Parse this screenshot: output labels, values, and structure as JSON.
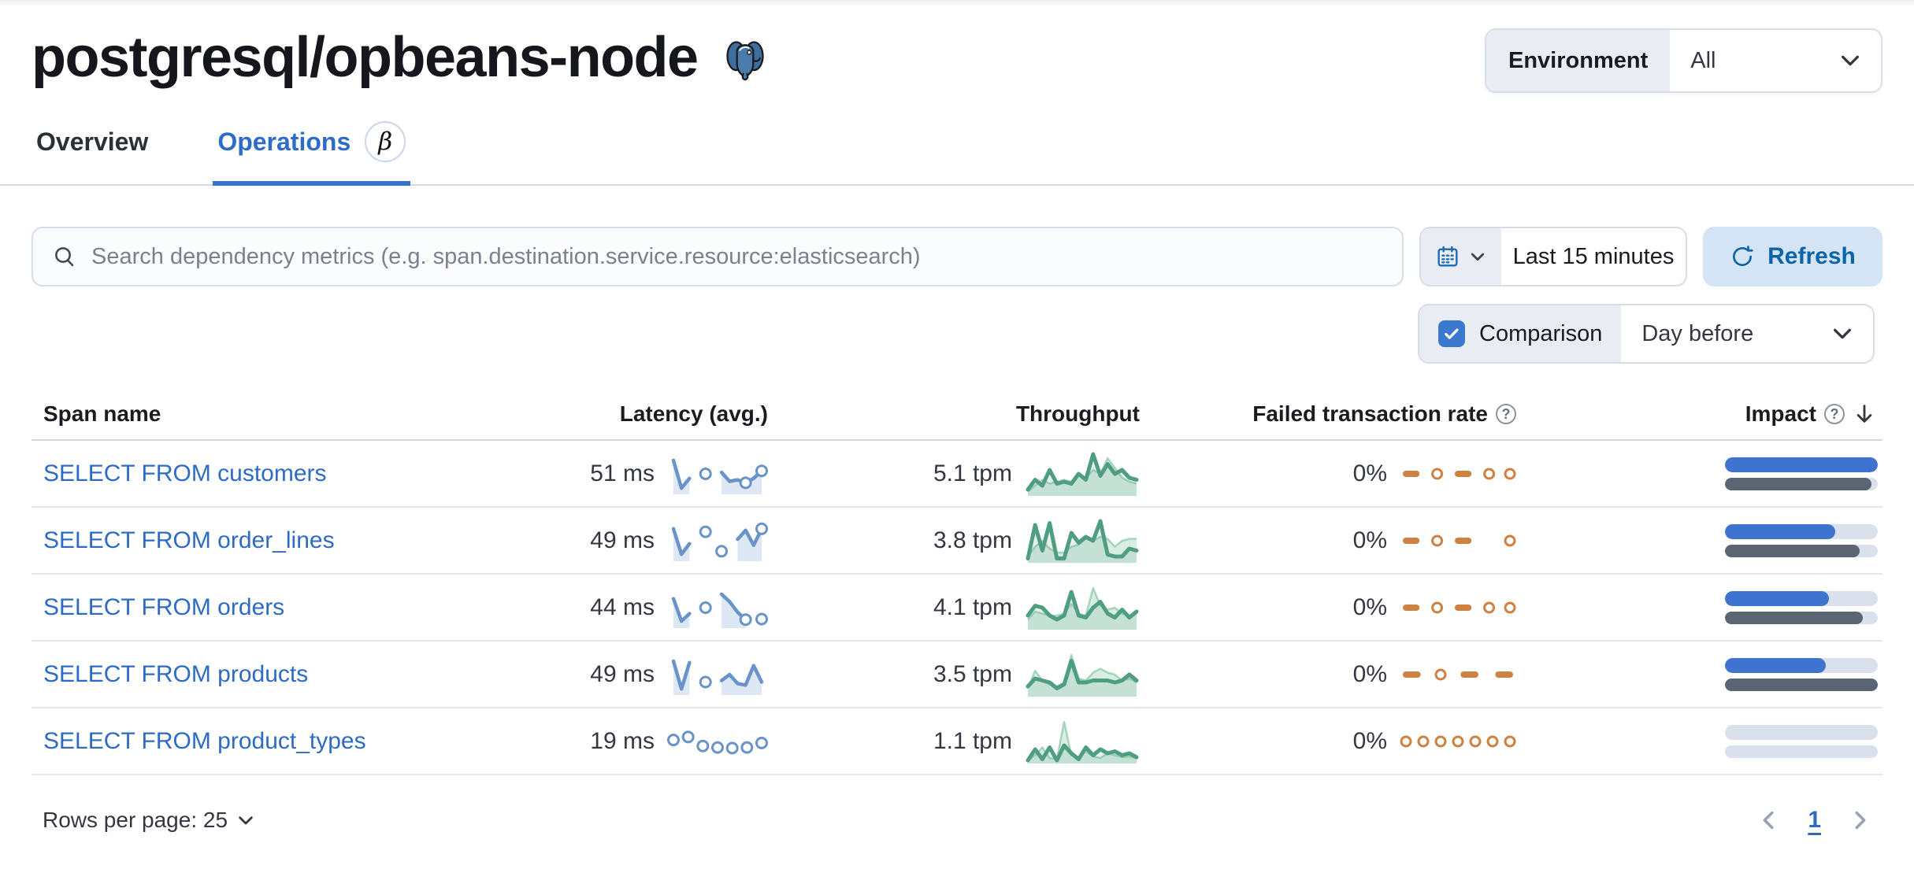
{
  "page": {
    "title": "postgresql/opbeans-node"
  },
  "env": {
    "label": "Environment",
    "value": "All"
  },
  "tabs": [
    {
      "label": "Overview"
    },
    {
      "label": "Operations",
      "beta": "β"
    }
  ],
  "search": {
    "placeholder": "Search dependency metrics (e.g. span.destination.service.resource:elasticsearch)"
  },
  "timepicker": {
    "value": "Last 15 minutes"
  },
  "refresh": {
    "label": "Refresh"
  },
  "comparison": {
    "label": "Comparison",
    "value": "Day before"
  },
  "table": {
    "columns": [
      "Span name",
      "Latency (avg.)",
      "Throughput",
      "Failed transaction rate",
      "Impact"
    ],
    "help_glyph": "?",
    "rows": [
      {
        "name": "SELECT FROM customers",
        "latency": "51 ms",
        "throughput": "5.1 tpm",
        "failed_rate": "0%",
        "impact": {
          "current": 100,
          "previous": 96
        },
        "latency_spark": {
          "points": [
            0.95,
            0.02,
            0.35,
            null,
            0.5,
            null,
            0.55,
            0.25,
            0.3,
            0.2,
            0.35,
            0.6
          ],
          "dots": [
            9,
            11
          ]
        },
        "throughput_spark": {
          "points": [
            0.1,
            0.35,
            0.2,
            0.6,
            0.25,
            0.3,
            0.25,
            0.5,
            0.35,
            1.0,
            0.45,
            0.75,
            0.5,
            0.6,
            0.4,
            0.35
          ],
          "compare": [
            0.05,
            0.2,
            0.35,
            0.25,
            0.3,
            0.35,
            0.3,
            0.45,
            0.4,
            0.6,
            0.5,
            0.9,
            0.65,
            0.4,
            0.3,
            0.25
          ]
        },
        "failed_spark": {
          "points": [
            0.5,
            0.5,
            null,
            0.5,
            null,
            0.5,
            0.5,
            null,
            0.5,
            null,
            0.5
          ]
        }
      },
      {
        "name": "SELECT FROM order_lines",
        "latency": "49 ms",
        "throughput": "3.8 tpm",
        "failed_rate": "0%",
        "impact": {
          "current": 72,
          "previous": 88
        },
        "latency_spark": {
          "points": [
            0.9,
            0.05,
            0.4,
            null,
            0.8,
            null,
            0.15,
            null,
            0.55,
            0.85,
            0.35,
            0.9
          ],
          "dots": [
            11
          ]
        },
        "throughput_spark": {
          "points": [
            0.05,
            0.9,
            0.25,
            0.95,
            0.05,
            0.05,
            0.7,
            0.45,
            0.6,
            0.5,
            1.0,
            0.15,
            0.1,
            0.1,
            0.3,
            0.25
          ],
          "compare": [
            0.1,
            0.35,
            0.5,
            0.3,
            0.2,
            0.2,
            0.35,
            0.4,
            0.55,
            0.5,
            0.6,
            0.55,
            0.35,
            0.5,
            0.55,
            0.55
          ]
        },
        "failed_spark": {
          "points": [
            0.5,
            0.5,
            null,
            0.5,
            null,
            0.5,
            0.5,
            null,
            null,
            null,
            0.5
          ]
        }
      },
      {
        "name": "SELECT FROM orders",
        "latency": "44 ms",
        "throughput": "4.1 tpm",
        "failed_rate": "0%",
        "impact": {
          "current": 68,
          "previous": 90
        },
        "latency_spark": {
          "points": [
            0.8,
            0.05,
            0.3,
            null,
            0.5,
            null,
            0.95,
            0.7,
            0.35,
            0.1,
            null,
            0.12
          ],
          "dots": [
            9
          ]
        },
        "throughput_spark": {
          "points": [
            0.3,
            0.55,
            0.5,
            0.3,
            0.2,
            0.3,
            0.9,
            0.3,
            0.25,
            0.5,
            0.65,
            0.35,
            0.25,
            0.45,
            0.25,
            0.4
          ],
          "compare": [
            0.2,
            0.4,
            0.35,
            0.3,
            0.3,
            0.35,
            0.6,
            0.35,
            0.3,
            1.0,
            0.55,
            0.45,
            0.5,
            0.35,
            0.3,
            0.35
          ]
        },
        "failed_spark": {
          "points": [
            0.5,
            0.5,
            null,
            0.5,
            null,
            0.5,
            0.5,
            null,
            0.5,
            null,
            0.5
          ]
        }
      },
      {
        "name": "SELECT FROM products",
        "latency": "49 ms",
        "throughput": "3.5 tpm",
        "failed_rate": "0%",
        "impact": {
          "current": 66,
          "previous": 100
        },
        "latency_spark": {
          "points": [
            0.95,
            0.02,
            0.9,
            null,
            0.25,
            null,
            0.3,
            0.5,
            0.2,
            0.15,
            0.8,
            0.25
          ],
          "dots": []
        },
        "throughput_spark": {
          "points": [
            0.2,
            0.4,
            0.35,
            0.3,
            0.15,
            0.25,
            0.85,
            0.3,
            0.3,
            0.35,
            0.35,
            0.35,
            0.3,
            0.35,
            0.5,
            0.35
          ],
          "compare": [
            0.15,
            0.6,
            0.35,
            0.25,
            0.2,
            0.3,
            1.0,
            0.4,
            0.35,
            0.55,
            0.65,
            0.55,
            0.5,
            0.35,
            0.4,
            0.3
          ]
        },
        "failed_spark": {
          "points": [
            0.5,
            0.5,
            null,
            0.5,
            null,
            0.5,
            0.5,
            null,
            0.5,
            0.5
          ]
        }
      },
      {
        "name": "SELECT FROM product_types",
        "latency": "19 ms",
        "throughput": "1.1 tpm",
        "failed_rate": "0%",
        "impact": {
          "current": 0,
          "previous": 0
        },
        "latency_spark": {
          "points": [
            0.55,
            null,
            0.65,
            null,
            0.35,
            null,
            0.3,
            null,
            0.28,
            null,
            0.3,
            null,
            0.45
          ],
          "dots": []
        },
        "throughput_spark": {
          "points": [
            0.02,
            0.3,
            0.05,
            0.35,
            0.02,
            0.4,
            0.2,
            0.05,
            0.35,
            0.15,
            0.3,
            0.2,
            0.25,
            0.15,
            0.2,
            0.1
          ],
          "compare": [
            0.02,
            0.15,
            0.35,
            0.08,
            0.05,
            1.0,
            0.15,
            0.08,
            0.25,
            0.12,
            0.08,
            0.2,
            0.15,
            0.1,
            0.12,
            0.08
          ]
        },
        "failed_spark": {
          "points": [
            0.5,
            null,
            0.5,
            null,
            0.5,
            null,
            0.5,
            null,
            0.5,
            null,
            0.5,
            null,
            0.5
          ]
        }
      }
    ]
  },
  "pagination": {
    "rows_per_page_label": "Rows per page: 25",
    "page": "1"
  },
  "colors": {
    "link": "#2d6bc4",
    "impact": {
      "current": "#3e74cf",
      "previous": "#5a6472",
      "track": "#dbe1ec"
    },
    "sparks": {
      "latency": {
        "stroke": "#6a94c8",
        "fill": "#dde8f4",
        "lw": 4.5,
        "r": 6.5,
        "cw": 3,
        "pad": 8
      },
      "throughput": {
        "stroke": "#4f9e81",
        "fill": "rgba(84,164,131,0.15)",
        "lw": 5,
        "r": 5,
        "cw": 3,
        "pad": 4,
        "compareFill": "rgba(108,186,148,0.26)",
        "compareStroke": "rgba(108,186,148,0.55)",
        "compareLw": 2.5
      },
      "failed": {
        "stroke": "#cd8243",
        "lw": 8,
        "r": 6,
        "cw": 3,
        "pad": 8
      }
    }
  }
}
